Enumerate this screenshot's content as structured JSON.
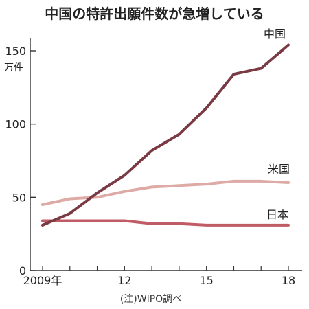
{
  "chart_data": {
    "type": "line",
    "title": "中国の特許出願件数が急増している",
    "ylabel": "万件",
    "x": [
      2009,
      2010,
      2011,
      2012,
      2013,
      2014,
      2015,
      2016,
      2017,
      2018
    ],
    "xlim": [
      2009,
      2018
    ],
    "ylim": [
      0,
      160
    ],
    "yticks": [
      "0",
      "50",
      "100",
      "150"
    ],
    "xticks": [
      {
        "value": 2009,
        "label": "2009年"
      },
      {
        "value": 2012,
        "label": "12"
      },
      {
        "value": 2015,
        "label": "15"
      },
      {
        "value": 2018,
        "label": "18"
      }
    ],
    "grid": false,
    "legend": "inline-right",
    "series": [
      {
        "name": "中国",
        "color": "#7a3a44",
        "values": [
          31,
          39,
          53,
          65,
          82,
          93,
          111,
          134,
          138,
          154
        ]
      },
      {
        "name": "米国",
        "color": "#deaaa6",
        "values": [
          45,
          49,
          50,
          54,
          57,
          58,
          59,
          61,
          61,
          60
        ]
      },
      {
        "name": "日本",
        "color": "#c05c66",
        "values": [
          34,
          34,
          34,
          34,
          32,
          32,
          31,
          31,
          31,
          31
        ]
      }
    ],
    "source": "(注)WIPO調べ"
  }
}
